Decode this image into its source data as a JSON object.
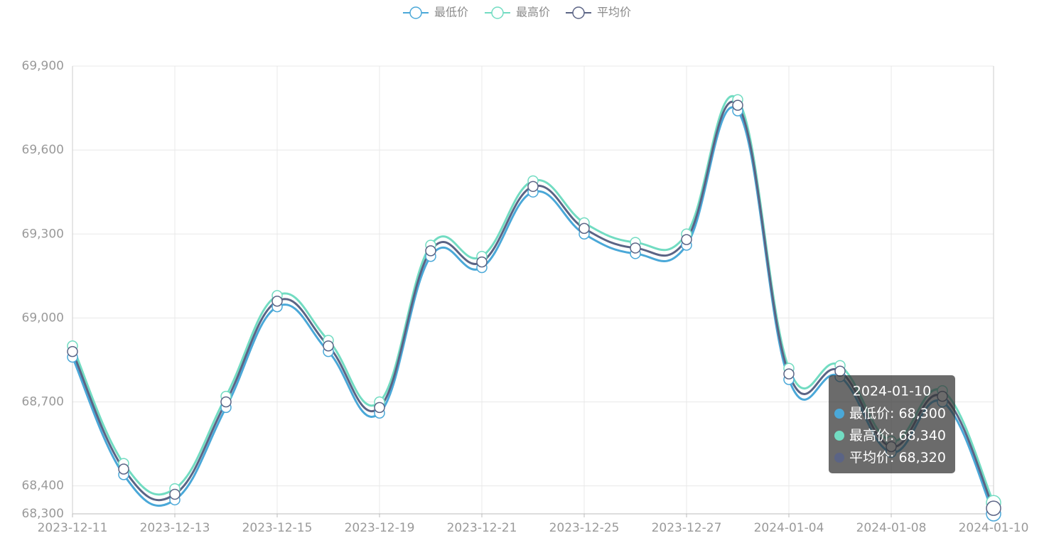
{
  "chart_data": {
    "type": "line",
    "categories": [
      "2023-12-11",
      null,
      "2023-12-13",
      null,
      "2023-12-15",
      null,
      "2023-12-19",
      null,
      "2023-12-21",
      null,
      "2023-12-25",
      null,
      "2023-12-27",
      null,
      "2024-01-04",
      null,
      "2024-01-08",
      null,
      "2024-01-10"
    ],
    "series": [
      {
        "name": "最低价",
        "color": "#4aa8d8",
        "values": [
          68860,
          68440,
          68350,
          68680,
          69040,
          68880,
          68660,
          69220,
          69180,
          69450,
          69300,
          69230,
          69260,
          69740,
          68780,
          68790,
          68520,
          68700,
          68300
        ]
      },
      {
        "name": "最高价",
        "color": "#72dcc2",
        "values": [
          68900,
          68480,
          68390,
          68720,
          69080,
          68920,
          68700,
          69260,
          69220,
          69490,
          69340,
          69270,
          69300,
          69780,
          68820,
          68830,
          68560,
          68740,
          68340
        ]
      },
      {
        "name": "平均价",
        "color": "#5b6485",
        "values": [
          68880,
          68460,
          68370,
          68700,
          69060,
          68900,
          68680,
          69240,
          69200,
          69470,
          69320,
          69250,
          69280,
          69760,
          68800,
          68810,
          68540,
          68720,
          68320
        ]
      }
    ],
    "ylim": [
      68300,
      69900
    ],
    "yticks": [
      {
        "value": 68300,
        "label": "68,300"
      },
      {
        "value": 68400,
        "label": "68,400"
      },
      {
        "value": 68700,
        "label": "68,700"
      },
      {
        "value": 69000,
        "label": "69,000"
      },
      {
        "value": 69300,
        "label": "69,300"
      },
      {
        "value": 69600,
        "label": "69,600"
      },
      {
        "value": 69900,
        "label": "69,900"
      }
    ],
    "grid": true,
    "smooth": true,
    "legend": "top",
    "tooltip": {
      "index": 18,
      "separator": ": ",
      "value_labels": [
        "68,300",
        "68,340",
        "68,320"
      ]
    }
  }
}
